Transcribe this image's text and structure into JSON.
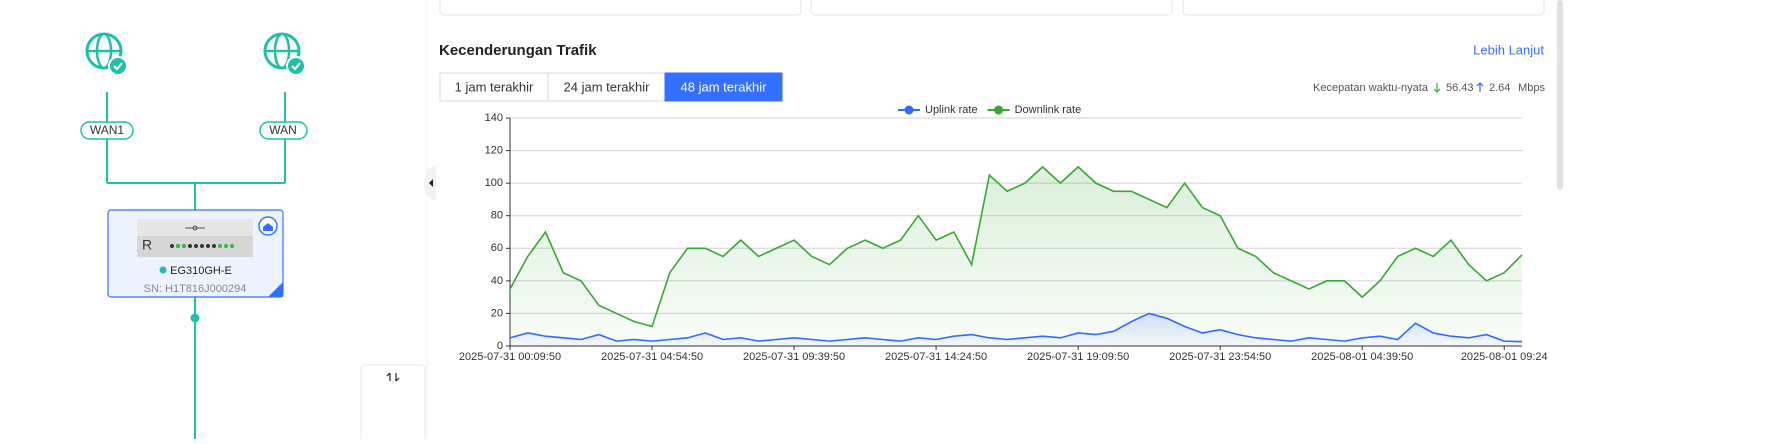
{
  "topology": {
    "wan_left": "WAN1",
    "wan_right": "WAN",
    "device": {
      "badge": "R",
      "model": "EG310GH-E",
      "sn": "SN: H1T816J000294"
    }
  },
  "section": {
    "title": "Kecenderungan Trafik",
    "more_link": "Lebih Lanjut",
    "tabs": [
      "1 jam terakhir",
      "24 jam terakhir",
      "48 jam terakhir"
    ],
    "active_tab": 2,
    "realtime": {
      "label": "Kecepatan waktu-nyata",
      "down": 56.43,
      "up": 2.64,
      "unit": "Mbps"
    }
  },
  "chart_data": {
    "type": "line",
    "legend": "top",
    "grid": true,
    "ylim": [
      0,
      140
    ],
    "yticks": [
      0,
      20,
      40,
      60,
      80,
      100,
      120,
      140
    ],
    "categories": [
      "2025-07-31 00:09:50",
      null,
      null,
      null,
      null,
      null,
      null,
      null,
      "2025-07-31 04:54:50",
      null,
      null,
      null,
      null,
      null,
      null,
      null,
      "2025-07-31 09:39:50",
      null,
      null,
      null,
      null,
      null,
      null,
      null,
      "2025-07-31 14:24:50",
      null,
      null,
      null,
      null,
      null,
      null,
      null,
      "2025-07-31 19:09:50",
      null,
      null,
      null,
      null,
      null,
      null,
      null,
      "2025-07-31 23:54:50",
      null,
      null,
      null,
      null,
      null,
      null,
      null,
      "2025-08-01 04:39:50",
      null,
      null,
      null,
      null,
      null,
      null,
      null,
      "2025-08-01 09:24",
      null
    ],
    "series": [
      {
        "name": "Uplink rate",
        "color": "#2f6bff",
        "values": [
          5,
          8,
          6,
          5,
          4,
          7,
          3,
          4,
          3,
          4,
          5,
          8,
          4,
          5,
          3,
          4,
          5,
          4,
          3,
          4,
          5,
          4,
          3,
          5,
          4,
          6,
          7,
          5,
          4,
          5,
          6,
          5,
          8,
          7,
          9,
          15,
          20,
          17,
          12,
          8,
          10,
          7,
          5,
          4,
          3,
          5,
          4,
          3,
          5,
          6,
          4,
          14,
          8,
          6,
          5,
          7,
          3,
          2.64
        ]
      },
      {
        "name": "Downlink rate",
        "color": "#38a832",
        "values": [
          35,
          55,
          70,
          45,
          40,
          25,
          20,
          15,
          12,
          45,
          60,
          60,
          55,
          65,
          55,
          60,
          65,
          55,
          50,
          60,
          65,
          60,
          65,
          80,
          65,
          70,
          50,
          105,
          95,
          100,
          110,
          100,
          110,
          100,
          95,
          95,
          90,
          85,
          100,
          85,
          80,
          60,
          55,
          45,
          40,
          35,
          40,
          40,
          30,
          40,
          55,
          60,
          55,
          65,
          50,
          40,
          45,
          56
        ]
      }
    ]
  }
}
